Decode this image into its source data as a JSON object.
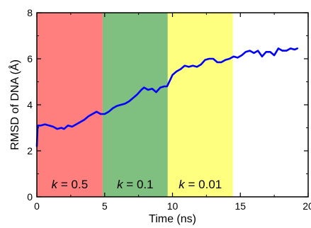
{
  "chart_data": {
    "type": "line",
    "xlabel": "Time (ns)",
    "ylabel": "RMSD of DNA (Å)",
    "xlim": [
      0,
      20
    ],
    "ylim": [
      0,
      8
    ],
    "xticks": [
      "0",
      "5",
      "10",
      "15",
      "20"
    ],
    "yticks": [
      "0",
      "2",
      "4",
      "6",
      "8"
    ],
    "grid": false,
    "regions": [
      {
        "x_start": 0,
        "x_end": 4.85,
        "color": "#ff7f7f",
        "label_var": "k",
        "label_value": "= 0.5"
      },
      {
        "x_start": 4.85,
        "x_end": 9.65,
        "color": "#7fbf7f",
        "label_var": "k",
        "label_value": "= 0.1"
      },
      {
        "x_start": 9.65,
        "x_end": 14.45,
        "color": "#ffff7f",
        "label_var": "k",
        "label_value": "= 0.01"
      }
    ],
    "series": [
      {
        "color": "#0000ff",
        "x": [
          0.0,
          0.05,
          0.1,
          0.3,
          0.6,
          0.9,
          1.2,
          1.5,
          1.8,
          2.0,
          2.3,
          2.6,
          2.9,
          3.2,
          3.5,
          3.8,
          4.1,
          4.4,
          4.7,
          5.0,
          5.3,
          5.6,
          5.9,
          6.2,
          6.5,
          6.8,
          7.1,
          7.4,
          7.7,
          7.9,
          8.2,
          8.5,
          8.8,
          9.1,
          9.4,
          9.6,
          9.8,
          10.0,
          10.3,
          10.6,
          10.9,
          11.2,
          11.5,
          11.8,
          12.1,
          12.4,
          12.7,
          13.0,
          13.3,
          13.6,
          13.9,
          14.2,
          14.5,
          14.8,
          15.1,
          15.4,
          15.7,
          16.0,
          16.3,
          16.6,
          16.9,
          17.2,
          17.5,
          17.8,
          18.1,
          18.4,
          18.7,
          19.0,
          19.2
        ],
        "y": [
          2.2,
          3.0,
          3.1,
          3.1,
          3.15,
          3.1,
          3.05,
          2.95,
          3.0,
          2.95,
          3.1,
          3.05,
          3.15,
          3.25,
          3.35,
          3.5,
          3.6,
          3.7,
          3.6,
          3.6,
          3.7,
          3.85,
          3.95,
          4.0,
          4.05,
          4.15,
          4.3,
          4.45,
          4.65,
          4.75,
          4.65,
          4.7,
          4.55,
          4.75,
          4.8,
          4.8,
          5.05,
          5.3,
          5.45,
          5.55,
          5.7,
          5.65,
          5.7,
          5.65,
          5.75,
          5.95,
          6.0,
          6.0,
          5.85,
          5.85,
          5.95,
          6.0,
          6.1,
          6.05,
          6.15,
          6.3,
          6.35,
          6.25,
          6.35,
          6.1,
          6.3,
          6.3,
          6.15,
          6.45,
          6.35,
          6.35,
          6.45,
          6.4,
          6.45
        ]
      }
    ]
  }
}
